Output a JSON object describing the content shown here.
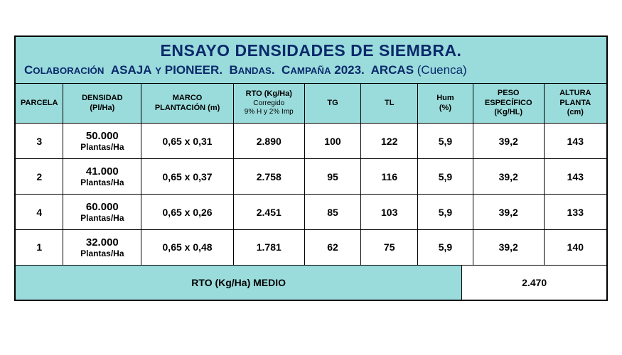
{
  "colors": {
    "header_bg": "#9adbdb",
    "title_text": "#0a2a6b",
    "border": "#000000",
    "body_bg": "#ffffff"
  },
  "title": {
    "main": "ENSAYO DENSIDADES DE SIEMBRA.",
    "sub_html": "C<small>OLABORACIÓN</small>  ASAJA <small>Y</small> PIONEER.  B<small>ANDAS</small>.  C<small>AMPAÑA</small> 2023.  ARCAS (Cuenca)"
  },
  "columns": [
    {
      "key": "parcela",
      "line1": "PARCELA",
      "line2": ""
    },
    {
      "key": "densidad",
      "line1": "DENSIDAD",
      "line2": "(Pl/Ha)"
    },
    {
      "key": "marco",
      "line1": "MARCO",
      "line2": "PLANTACIÓN  (m)"
    },
    {
      "key": "rto",
      "line1": "RTO (Kg/Ha)",
      "line2": "Corregido",
      "line3": "9% H y 2% Imp"
    },
    {
      "key": "tg",
      "line1": "TG",
      "line2": ""
    },
    {
      "key": "tl",
      "line1": "TL",
      "line2": ""
    },
    {
      "key": "hum",
      "line1": "Hum",
      "line2": "(%)"
    },
    {
      "key": "peso",
      "line1": "PESO",
      "line2": "ESPECÍFICO",
      "line3": "(Kg/HL)"
    },
    {
      "key": "altura",
      "line1": "ALTURA",
      "line2": "PLANTA",
      "line3": "(cm)"
    }
  ],
  "rows": [
    {
      "parcela": "3",
      "den_val": "50.000",
      "den_unit": "Plantas/Ha",
      "marco": "0,65 x 0,31",
      "rto": "2.890",
      "tg": "100",
      "tl": "122",
      "hum": "5,9",
      "peso": "39,2",
      "altura": "143"
    },
    {
      "parcela": "2",
      "den_val": "41.000",
      "den_unit": "Plantas/Ha",
      "marco": "0,65 x 0,37",
      "rto": "2.758",
      "tg": "95",
      "tl": "116",
      "hum": "5,9",
      "peso": "39,2",
      "altura": "143"
    },
    {
      "parcela": "4",
      "den_val": "60.000",
      "den_unit": "Plantas/Ha",
      "marco": "0,65 x 0,26",
      "rto": "2.451",
      "tg": "85",
      "tl": "103",
      "hum": "5,9",
      "peso": "39,2",
      "altura": "133"
    },
    {
      "parcela": "1",
      "den_val": "32.000",
      "den_unit": "Plantas/Ha",
      "marco": "0,65 x 0,48",
      "rto": "1.781",
      "tg": "62",
      "tl": "75",
      "hum": "5,9",
      "peso": "39,2",
      "altura": "140"
    }
  ],
  "footer": {
    "label": "RTO (Kg/Ha) MEDIO",
    "value": "2.470"
  }
}
